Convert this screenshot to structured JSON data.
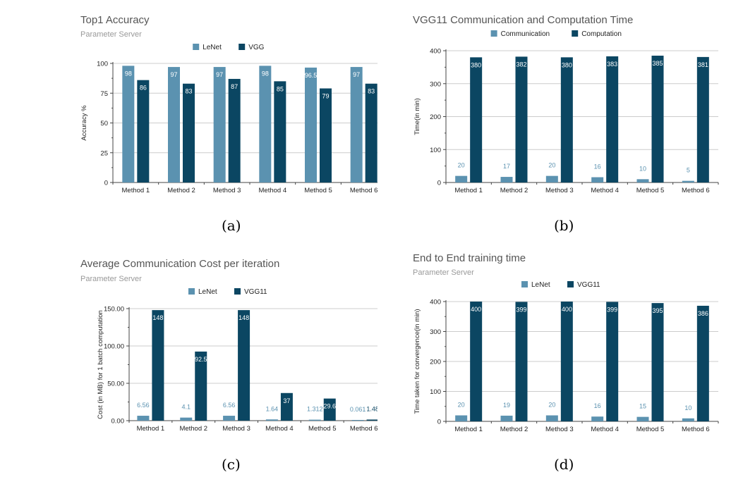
{
  "colors": {
    "lenet": "#5b92b0",
    "vgg": "#0b4662",
    "label_light": "#5b92b0",
    "grid": "#cccccc",
    "axis": "#444444",
    "title": "#555555",
    "subtitle": "#999999"
  },
  "charts": [
    {
      "caption": "(a)",
      "chart_data": {
        "type": "bar",
        "title": "Top1 Accuracy",
        "subtitle": "Parameter Server",
        "ylabel": "Accuracy %",
        "xlabel": "",
        "ylim": [
          0,
          100
        ],
        "yticks": [
          "0",
          "25",
          "50",
          "75",
          "100"
        ],
        "grid": true,
        "legend": "top-center",
        "categories": [
          "Method 1",
          "Method 2",
          "Method 3",
          "Method 4",
          "Method 5",
          "Method 6"
        ],
        "series": [
          {
            "name": "LeNet",
            "values": [
              98,
              97,
              97,
              98,
              96.5,
              97
            ],
            "labels": [
              "98",
              "97",
              "97",
              "98",
              "96.5",
              "97"
            ]
          },
          {
            "name": "VGG",
            "values": [
              86,
              83,
              87,
              85,
              79,
              83
            ],
            "labels": [
              "86",
              "83",
              "87",
              "85",
              "79",
              "83"
            ]
          }
        ]
      }
    },
    {
      "caption": "(b)",
      "chart_data": {
        "type": "bar",
        "title": "VGG11 Communication and Computation Time",
        "subtitle": "",
        "ylabel": "Time(in min)",
        "xlabel": "",
        "ylim": [
          0,
          400
        ],
        "yticks": [
          "0",
          "100",
          "200",
          "300",
          "400"
        ],
        "grid": true,
        "legend": "top-center",
        "categories": [
          "Method 1",
          "Method 2",
          "Method 3",
          "Method 4",
          "Method 5",
          "Method 6"
        ],
        "series": [
          {
            "name": "Communication",
            "values": [
              20,
              17,
              20,
              16,
              10,
              5
            ],
            "labels": [
              "20",
              "17",
              "20",
              "16",
              "10",
              "5"
            ]
          },
          {
            "name": "Computation",
            "values": [
              380,
              382,
              380,
              383,
              385,
              381
            ],
            "labels": [
              "380",
              "382",
              "380",
              "383",
              "385",
              "381"
            ]
          }
        ]
      }
    },
    {
      "caption": "(c)",
      "chart_data": {
        "type": "bar",
        "title": "Average Communication Cost per iteration",
        "subtitle": "Parameter Server",
        "ylabel": "Cost (in MB) for 1 batch computation",
        "xlabel": "",
        "ylim": [
          0,
          150
        ],
        "yticks": [
          "0.00",
          "50.00",
          "100.00",
          "150.00"
        ],
        "grid": true,
        "legend": "top-center",
        "categories": [
          "Method 1",
          "Method 2",
          "Method 3",
          "Method 4",
          "Method 5",
          "Method 6*"
        ],
        "series": [
          {
            "name": "LeNet",
            "values": [
              6.56,
              4.1,
              6.56,
              1.64,
              1.312,
              0.061
            ],
            "labels": [
              "6.56",
              "4.1",
              "6.56",
              "1.64",
              "1.312",
              "0.061"
            ]
          },
          {
            "name": "VGG11",
            "values": [
              148,
              92.5,
              148,
              37,
              29.6,
              1.48
            ],
            "labels": [
              "148",
              "92.5",
              "148",
              "37",
              "29.6",
              "1.48"
            ]
          }
        ]
      }
    },
    {
      "caption": "(d)",
      "chart_data": {
        "type": "bar",
        "title": "End to End training time",
        "subtitle": "Parameter Server",
        "ylabel": "Time taken for convergence(in min)",
        "xlabel": "",
        "ylim": [
          0,
          400
        ],
        "yticks": [
          "0",
          "100",
          "200",
          "300",
          "400"
        ],
        "grid": true,
        "legend": "top-center",
        "categories": [
          "Method 1",
          "Method 2",
          "Method 3",
          "Method 4",
          "Method 5",
          "Method 6"
        ],
        "series": [
          {
            "name": "LeNet",
            "values": [
              20,
              19,
              20,
              16,
              15,
              10
            ],
            "labels": [
              "20",
              "19",
              "20",
              "16",
              "15",
              "10"
            ]
          },
          {
            "name": "VGG11",
            "values": [
              400,
              399,
              400,
              399,
              395,
              386
            ],
            "labels": [
              "400",
              "399",
              "400",
              "399",
              "395",
              "386"
            ]
          }
        ]
      }
    }
  ]
}
